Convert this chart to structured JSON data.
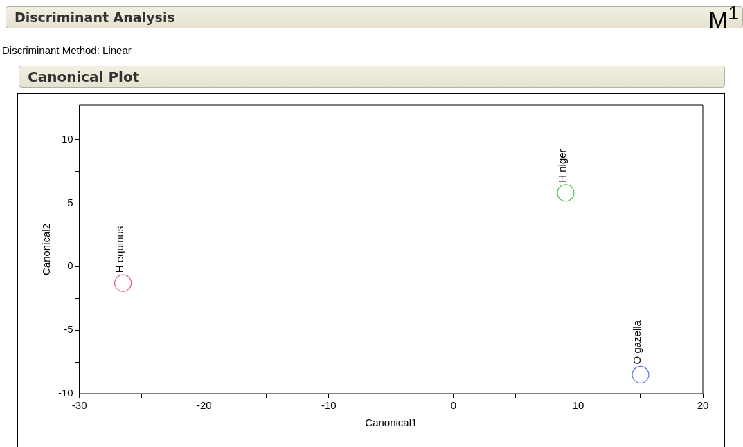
{
  "chart_data": {
    "type": "scatter",
    "title": "Discriminant Analysis",
    "subtitle": "Discriminant Method: Linear",
    "xlabel": "Canonical1",
    "ylabel": "Canonical2",
    "x": [
      -26.5,
      9,
      15
    ],
    "values": [
      -1.3,
      5.8,
      -8.5
    ],
    "colors": [
      "#e0507a",
      "#55bb55",
      "#5577dd"
    ],
    "marker": "circle",
    "grid": false,
    "legend": false,
    "xlim": [
      -30,
      20
    ],
    "xticks": [
      -30,
      {
        "value": -25,
        "label": null
      },
      -20,
      {
        "value": -15,
        "label": null
      },
      -10,
      {
        "value": -5,
        "label": null
      },
      0,
      {
        "value": 5,
        "label": null
      },
      10,
      {
        "value": 15,
        "label": null
      },
      20
    ],
    "ylim": [
      -10,
      12.7
    ],
    "yticks": [
      -10,
      {
        "value": -7.5,
        "label": null
      },
      -5,
      {
        "value": -2.5,
        "label": null
      },
      0,
      {
        "value": 2.5,
        "label": null
      },
      5,
      {
        "value": 7.5,
        "label": null
      },
      10
    ],
    "annotations": [
      "M$^{1}$",
      "Canonical Plot",
      {
        "text": "H equinus",
        "x": -26.5,
        "y": -1.3
      },
      {
        "text": "H niger",
        "x": 9,
        "y": 5.8
      },
      {
        "text": "O gazella",
        "x": 15,
        "y": -8.5
      }
    ]
  }
}
